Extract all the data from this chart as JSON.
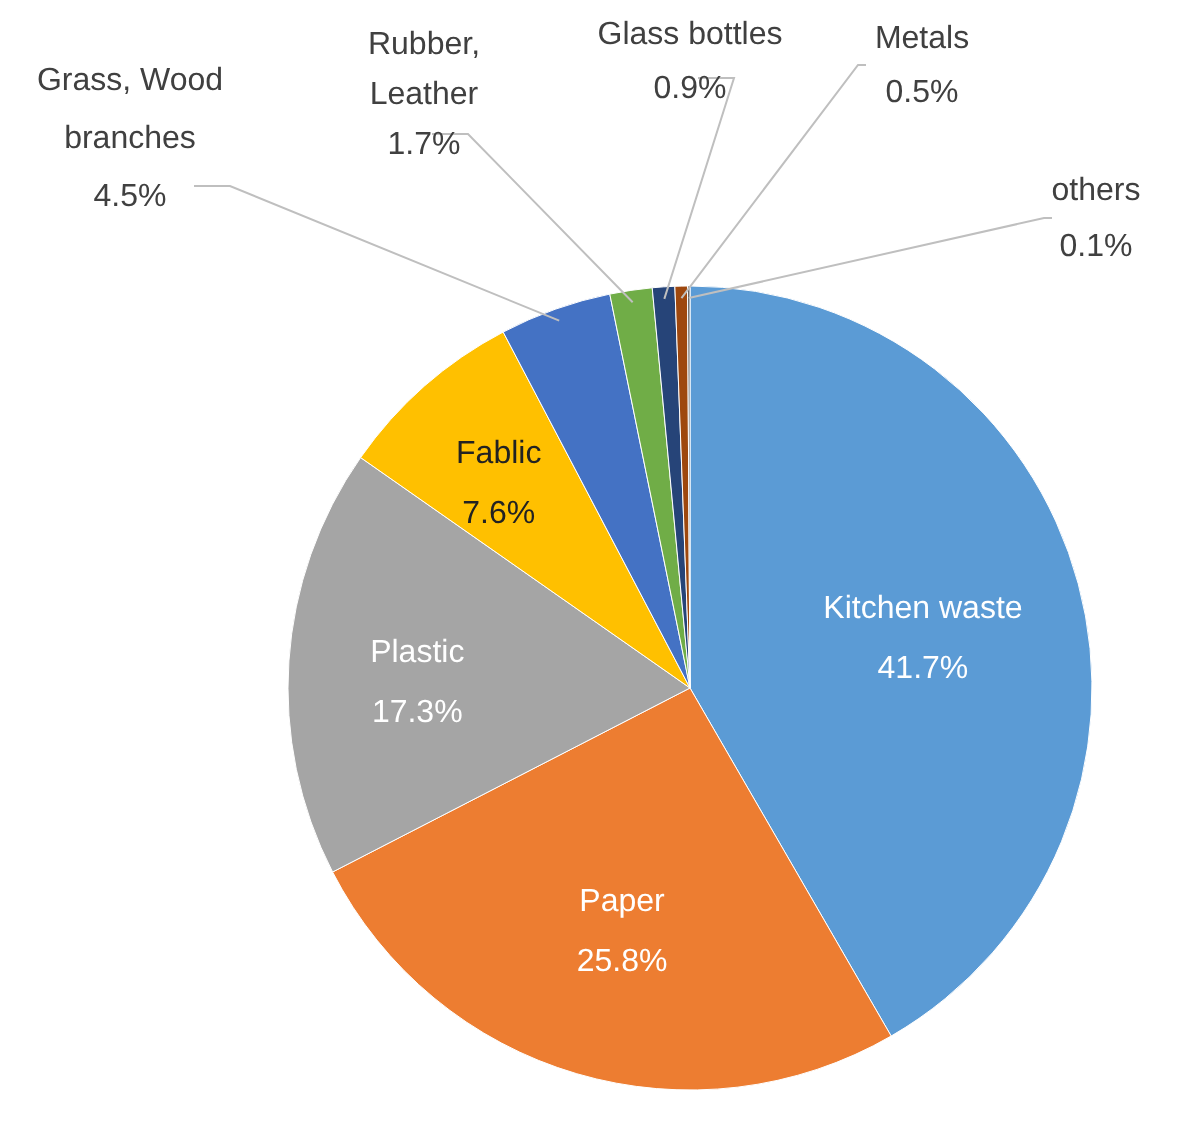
{
  "chart_data": {
    "type": "pie",
    "categories": [
      "Kitchen waste",
      "Paper",
      "Plastic",
      "Fablic",
      "Grass, Wood branches",
      "Rubber, Leather",
      "Glass bottles",
      "Metals",
      "others"
    ],
    "values": [
      41.7,
      25.8,
      17.3,
      7.6,
      4.5,
      1.7,
      0.9,
      0.5,
      0.1
    ],
    "colors": [
      "#5b9bd5",
      "#ed7d31",
      "#a5a5a5",
      "#ffc000",
      "#4472c4",
      "#70ad47",
      "#264478",
      "#9e480e",
      "#636363"
    ],
    "value_labels": [
      "41.7%",
      "25.8%",
      "17.3%",
      "7.6%",
      "4.5%",
      "1.7%",
      "0.9%",
      "0.5%",
      "0.1%"
    ]
  }
}
